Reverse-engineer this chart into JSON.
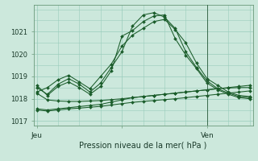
{
  "xlabel": "Pression niveau de la mer( hPa )",
  "background_color": "#cce8dc",
  "grid_color": "#99ccbb",
  "line_color": "#1a5c2a",
  "ylim": [
    1016.8,
    1022.2
  ],
  "yticks": [
    1017,
    1018,
    1019,
    1020,
    1021
  ],
  "xtick_labels": [
    "Jeu",
    "",
    "Ven"
  ],
  "xtick_positions": [
    0,
    8,
    16
  ],
  "vline_x": 16,
  "series": [
    [
      1018.3,
      1018.5,
      1018.85,
      1019.05,
      1018.75,
      1018.45,
      1019.0,
      1019.55,
      1020.35,
      1020.85,
      1021.15,
      1021.45,
      1021.55,
      1021.1,
      1020.5,
      1019.6,
      1018.9,
      1018.6,
      1018.3,
      1018.15,
      1018.1
    ],
    [
      1018.5,
      1018.2,
      1018.65,
      1018.9,
      1018.65,
      1018.3,
      1018.7,
      1019.4,
      1020.1,
      1021.25,
      1021.75,
      1021.85,
      1021.65,
      1021.15,
      1020.1,
      1019.4,
      1018.8,
      1018.45,
      1018.25,
      1018.1,
      1018.05
    ],
    [
      1018.6,
      1018.15,
      1018.55,
      1018.75,
      1018.5,
      1018.2,
      1018.55,
      1019.25,
      1020.8,
      1021.05,
      1021.45,
      1021.7,
      1021.75,
      1020.7,
      1019.95,
      1019.35,
      1018.7,
      1018.4,
      1018.2,
      1018.05,
      1018.0
    ],
    [
      1017.55,
      1017.5,
      1017.55,
      1017.6,
      1017.65,
      1017.7,
      1017.75,
      1017.85,
      1017.95,
      1018.05,
      1018.1,
      1018.15,
      1018.2,
      1018.25,
      1018.3,
      1018.35,
      1018.4,
      1018.45,
      1018.5,
      1018.55,
      1018.6
    ],
    [
      1017.5,
      1017.45,
      1017.5,
      1017.55,
      1017.58,
      1017.62,
      1017.66,
      1017.72,
      1017.78,
      1017.84,
      1017.88,
      1017.92,
      1017.96,
      1018.0,
      1018.05,
      1018.1,
      1018.15,
      1018.2,
      1018.25,
      1018.3,
      1018.35
    ],
    [
      1018.25,
      1017.95,
      1017.9,
      1017.88,
      1017.88,
      1017.9,
      1017.92,
      1017.96,
      1018.0,
      1018.05,
      1018.1,
      1018.15,
      1018.2,
      1018.25,
      1018.3,
      1018.35,
      1018.4,
      1018.45,
      1018.48,
      1018.5,
      1018.5
    ]
  ]
}
